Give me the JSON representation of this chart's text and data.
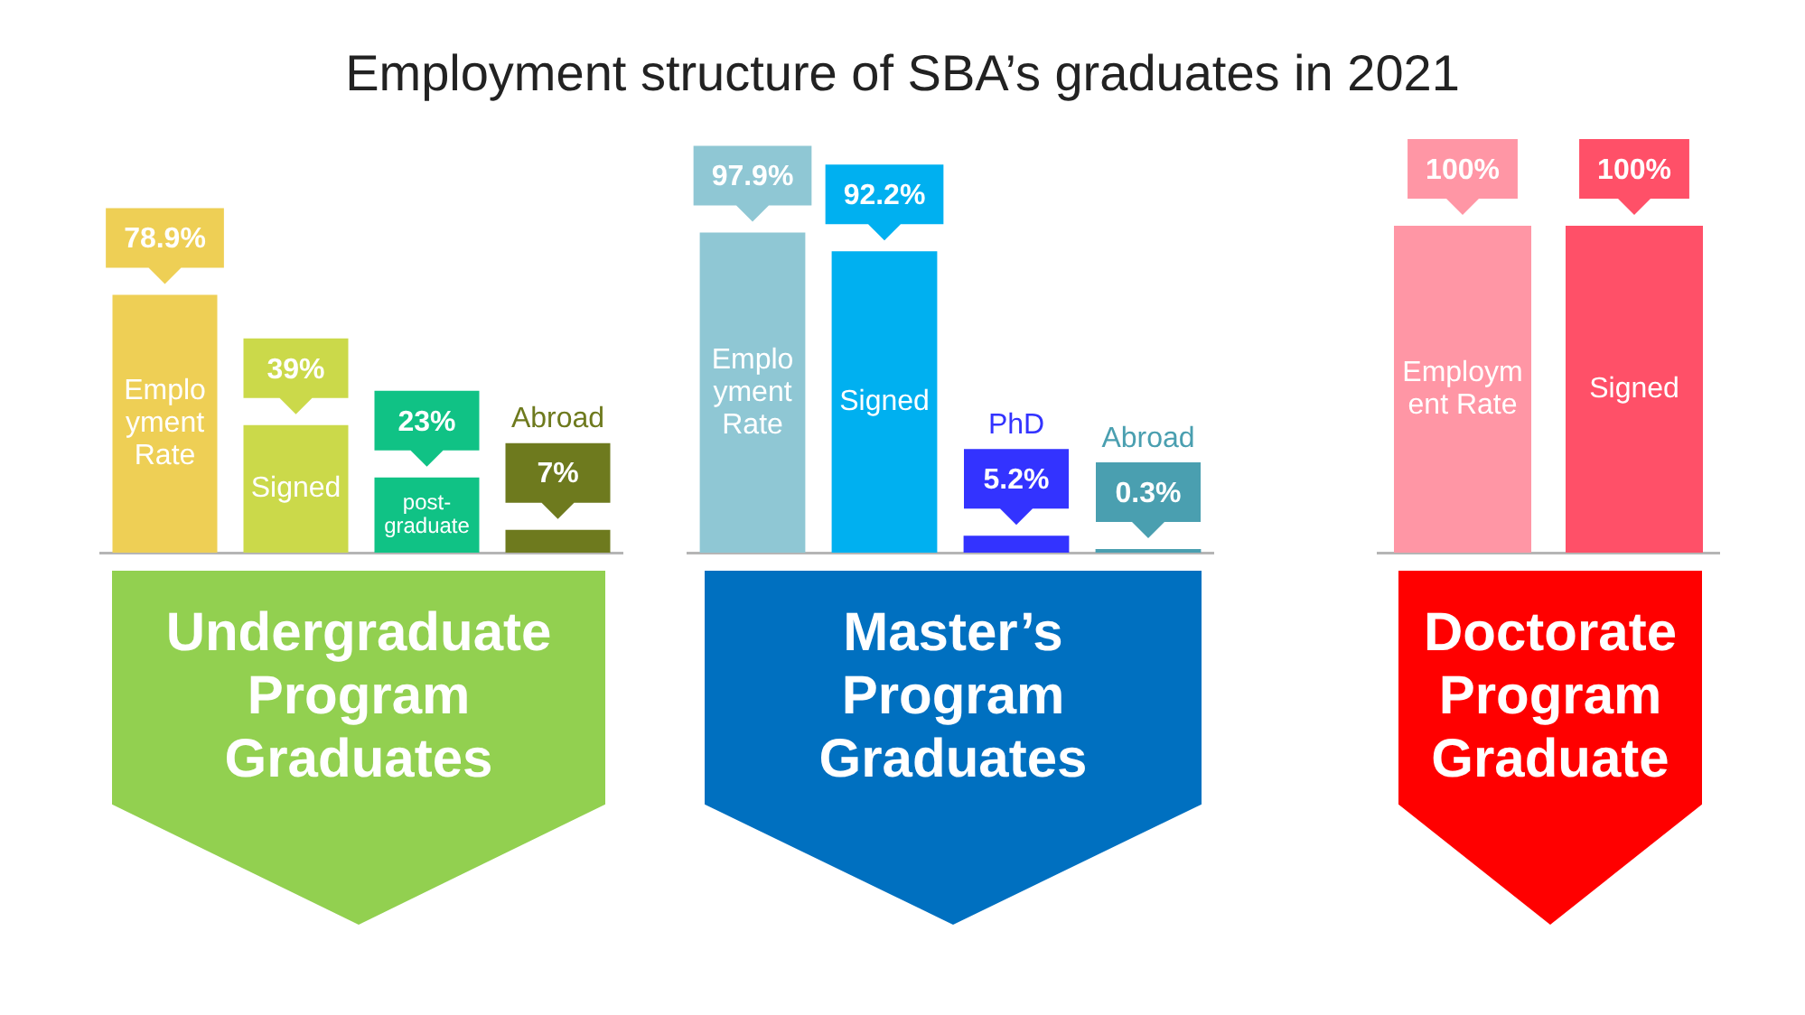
{
  "chart_data": [
    {
      "type": "bar",
      "title": "Employment structure of SBA’s graduates in 2021",
      "xlabel": "Undergraduate Program Graduates",
      "categories": [
        "Employment Rate",
        "Signed",
        "post-graduate",
        "Abroad"
      ],
      "values": [
        78.9,
        39,
        23,
        7
      ],
      "value_labels": [
        "78.9%",
        "39%",
        "23%",
        "7%"
      ],
      "colors": [
        "#eecf55",
        "#cbd94a",
        "#10c285",
        "#6e7a1e"
      ],
      "tick_labels": "x"
    },
    {
      "type": "bar",
      "xlabel": "Master’s Program Graduates",
      "categories": [
        "Employment Rate",
        "Signed",
        "PhD",
        "Abroad"
      ],
      "values": [
        97.9,
        92.2,
        5.2,
        0.3
      ],
      "value_labels": [
        "97.9%",
        "92.2%",
        "5.2%",
        "0.3%"
      ],
      "colors": [
        "#8fc7d4",
        "#00b0f0",
        "#3333ff",
        "#4a9fb0"
      ],
      "tick_labels": "x"
    },
    {
      "type": "bar",
      "xlabel": "Doctorate Program Graduate",
      "categories": [
        "Employment Rate",
        "Signed"
      ],
      "values": [
        100,
        100
      ],
      "value_labels": [
        "100%",
        "100%"
      ],
      "colors": [
        "#ff96a5",
        "#ff5068"
      ],
      "tick_labels": "x"
    }
  ]
}
